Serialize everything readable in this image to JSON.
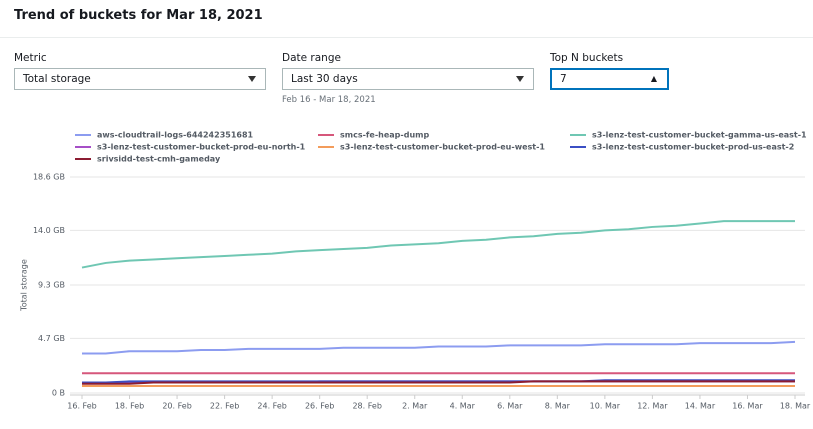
{
  "header": {
    "title": "Trend of buckets for Mar 18, 2021"
  },
  "controls": {
    "metric": {
      "label": "Metric",
      "value": "Total storage"
    },
    "date_range": {
      "label": "Date range",
      "value": "Last 30 days",
      "hint": "Feb 16 - Mar 18, 2021"
    },
    "top_n": {
      "label": "Top N buckets",
      "value": "7"
    }
  },
  "chart_data": {
    "type": "line",
    "y_label": "Total storage",
    "grid": true,
    "categories": [
      "16. Feb",
      null,
      "18. Feb",
      null,
      "20. Feb",
      null,
      "22. Feb",
      null,
      "24. Feb",
      null,
      "26. Feb",
      null,
      "28. Feb",
      null,
      "2. Mar",
      null,
      "4. Mar",
      null,
      "6. Mar",
      null,
      "8. Mar",
      null,
      "10. Mar",
      null,
      "12. Mar",
      null,
      "14. Mar",
      null,
      "16. Mar",
      null,
      "18. Mar"
    ],
    "ylim": [
      0,
      18.6
    ],
    "yticks": [
      {
        "value": 0,
        "label": "0 B"
      },
      {
        "value": 4.7,
        "label": "4.7 GB"
      },
      {
        "value": 9.3,
        "label": "9.3 GB"
      },
      {
        "value": 14.0,
        "label": "14.0 GB"
      },
      {
        "value": 18.6,
        "label": "18.6 GB"
      }
    ],
    "series": [
      {
        "name": "aws-cloudtrail-logs-644242351681",
        "color": "#8c9cf0",
        "values": [
          3.4,
          3.4,
          3.6,
          3.6,
          3.6,
          3.7,
          3.7,
          3.8,
          3.8,
          3.8,
          3.8,
          3.9,
          3.9,
          3.9,
          3.9,
          4.0,
          4.0,
          4.0,
          4.1,
          4.1,
          4.1,
          4.1,
          4.2,
          4.2,
          4.2,
          4.2,
          4.3,
          4.3,
          4.3,
          4.3,
          4.4
        ]
      },
      {
        "name": "smcs-fe-heap-dump",
        "color": "#d6577b",
        "values": [
          1.7,
          1.7,
          1.7,
          1.7,
          1.7,
          1.7,
          1.7,
          1.7,
          1.7,
          1.7,
          1.7,
          1.7,
          1.7,
          1.7,
          1.7,
          1.7,
          1.7,
          1.7,
          1.7,
          1.7,
          1.7,
          1.7,
          1.7,
          1.7,
          1.7,
          1.7,
          1.7,
          1.7,
          1.7,
          1.7,
          1.7
        ]
      },
      {
        "name": "s3-lenz-test-customer-bucket-gamma-us-east-1",
        "color": "#6fc7b3",
        "values": [
          10.8,
          11.2,
          11.4,
          11.5,
          11.6,
          11.7,
          11.8,
          11.9,
          12.0,
          12.2,
          12.3,
          12.4,
          12.5,
          12.7,
          12.8,
          12.9,
          13.1,
          13.2,
          13.4,
          13.5,
          13.7,
          13.8,
          14.0,
          14.1,
          14.3,
          14.4,
          14.6,
          14.8,
          14.8,
          14.8,
          14.8
        ]
      },
      {
        "name": "s3-lenz-test-customer-bucket-prod-eu-north-1",
        "color": "#a64fc7",
        "values": [
          0.9,
          0.9,
          0.9,
          0.9,
          0.9,
          0.9,
          0.9,
          0.9,
          0.9,
          0.9,
          1.0,
          1.0,
          1.0,
          1.0,
          1.0,
          1.0,
          1.0,
          1.0,
          1.0,
          1.0,
          1.0,
          1.0,
          1.0,
          1.0,
          1.0,
          1.0,
          1.0,
          1.0,
          1.0,
          1.0,
          1.0
        ]
      },
      {
        "name": "s3-lenz-test-customer-bucket-prod-eu-west-1",
        "color": "#f39c5b",
        "values": [
          0.6,
          0.6,
          0.6,
          0.6,
          0.6,
          0.6,
          0.6,
          0.6,
          0.6,
          0.6,
          0.6,
          0.6,
          0.6,
          0.6,
          0.6,
          0.6,
          0.6,
          0.6,
          0.6,
          0.6,
          0.6,
          0.6,
          0.6,
          0.6,
          0.6,
          0.6,
          0.6,
          0.6,
          0.6,
          0.6,
          0.6
        ]
      },
      {
        "name": "s3-lenz-test-customer-bucket-prod-us-east-2",
        "color": "#3b4fc4",
        "values": [
          0.9,
          0.9,
          1.0,
          1.0,
          1.0,
          1.0,
          1.0,
          1.0,
          1.0,
          1.0,
          1.0,
          1.0,
          1.0,
          1.0,
          1.0,
          1.0,
          1.0,
          1.0,
          1.0,
          1.0,
          1.0,
          1.0,
          1.1,
          1.1,
          1.1,
          1.1,
          1.1,
          1.1,
          1.1,
          1.1,
          1.1
        ]
      },
      {
        "name": "srivsidd-test-cmh-gameday",
        "color": "#8c1c32",
        "values": [
          0.8,
          0.8,
          0.8,
          0.9,
          0.9,
          0.9,
          0.9,
          0.9,
          0.9,
          0.9,
          0.9,
          0.9,
          0.9,
          0.9,
          0.9,
          0.9,
          0.9,
          0.9,
          0.9,
          1.0,
          1.0,
          1.0,
          1.0,
          1.0,
          1.0,
          1.0,
          1.0,
          1.0,
          1.0,
          1.0,
          1.0
        ]
      }
    ]
  }
}
